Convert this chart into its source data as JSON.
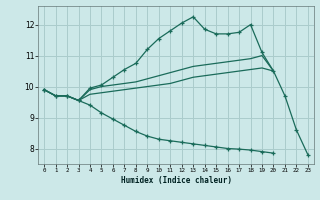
{
  "xlabel": "Humidex (Indice chaleur)",
  "bg_color": "#cce8e8",
  "grid_color": "#aacccc",
  "line_color": "#1a6b5a",
  "xlim": [
    -0.5,
    23.5
  ],
  "ylim": [
    7.5,
    12.6
  ],
  "yticks": [
    8,
    9,
    10,
    11,
    12
  ],
  "xticks": [
    0,
    1,
    2,
    3,
    4,
    5,
    6,
    7,
    8,
    9,
    10,
    11,
    12,
    13,
    14,
    15,
    16,
    17,
    18,
    19,
    20,
    21,
    22,
    23
  ],
  "series": [
    {
      "x": [
        0,
        1,
        2,
        3,
        4,
        5,
        6,
        7,
        8,
        9,
        10,
        11,
        12,
        13,
        14,
        15,
        16,
        17,
        18,
        19,
        20,
        21,
        22,
        23
      ],
      "y": [
        9.9,
        9.7,
        9.7,
        9.55,
        9.95,
        10.05,
        10.3,
        10.55,
        10.75,
        11.2,
        11.55,
        11.8,
        12.05,
        12.25,
        11.85,
        11.7,
        11.7,
        11.75,
        12.0,
        11.1,
        10.5,
        9.7,
        8.6,
        7.8
      ],
      "markers": true
    },
    {
      "x": [
        0,
        1,
        2,
        3,
        4,
        5,
        6,
        7,
        8,
        9,
        10,
        11,
        12,
        13,
        14,
        15,
        16,
        17,
        18,
        19,
        20
      ],
      "y": [
        9.9,
        9.7,
        9.7,
        9.55,
        9.9,
        10.0,
        10.05,
        10.1,
        10.15,
        10.25,
        10.35,
        10.45,
        10.55,
        10.65,
        10.7,
        10.75,
        10.8,
        10.85,
        10.9,
        11.0,
        10.5
      ],
      "markers": false
    },
    {
      "x": [
        0,
        1,
        2,
        3,
        4,
        5,
        6,
        7,
        8,
        9,
        10,
        11,
        12,
        13,
        14,
        15,
        16,
        17,
        18,
        19,
        20
      ],
      "y": [
        9.9,
        9.7,
        9.7,
        9.55,
        9.75,
        9.8,
        9.85,
        9.9,
        9.95,
        10.0,
        10.05,
        10.1,
        10.2,
        10.3,
        10.35,
        10.4,
        10.45,
        10.5,
        10.55,
        10.6,
        10.5
      ],
      "markers": false
    },
    {
      "x": [
        0,
        1,
        2,
        3,
        4,
        5,
        6,
        7,
        8,
        9,
        10,
        11,
        12,
        13,
        14,
        15,
        16,
        17,
        18,
        19,
        20,
        21,
        22,
        23
      ],
      "y": [
        9.9,
        9.7,
        9.7,
        9.55,
        9.4,
        9.15,
        8.95,
        8.75,
        8.55,
        8.4,
        8.3,
        8.25,
        8.2,
        8.15,
        8.1,
        8.05,
        8.0,
        7.98,
        7.95,
        7.9,
        7.85,
        null,
        null,
        null
      ],
      "markers": true
    }
  ]
}
